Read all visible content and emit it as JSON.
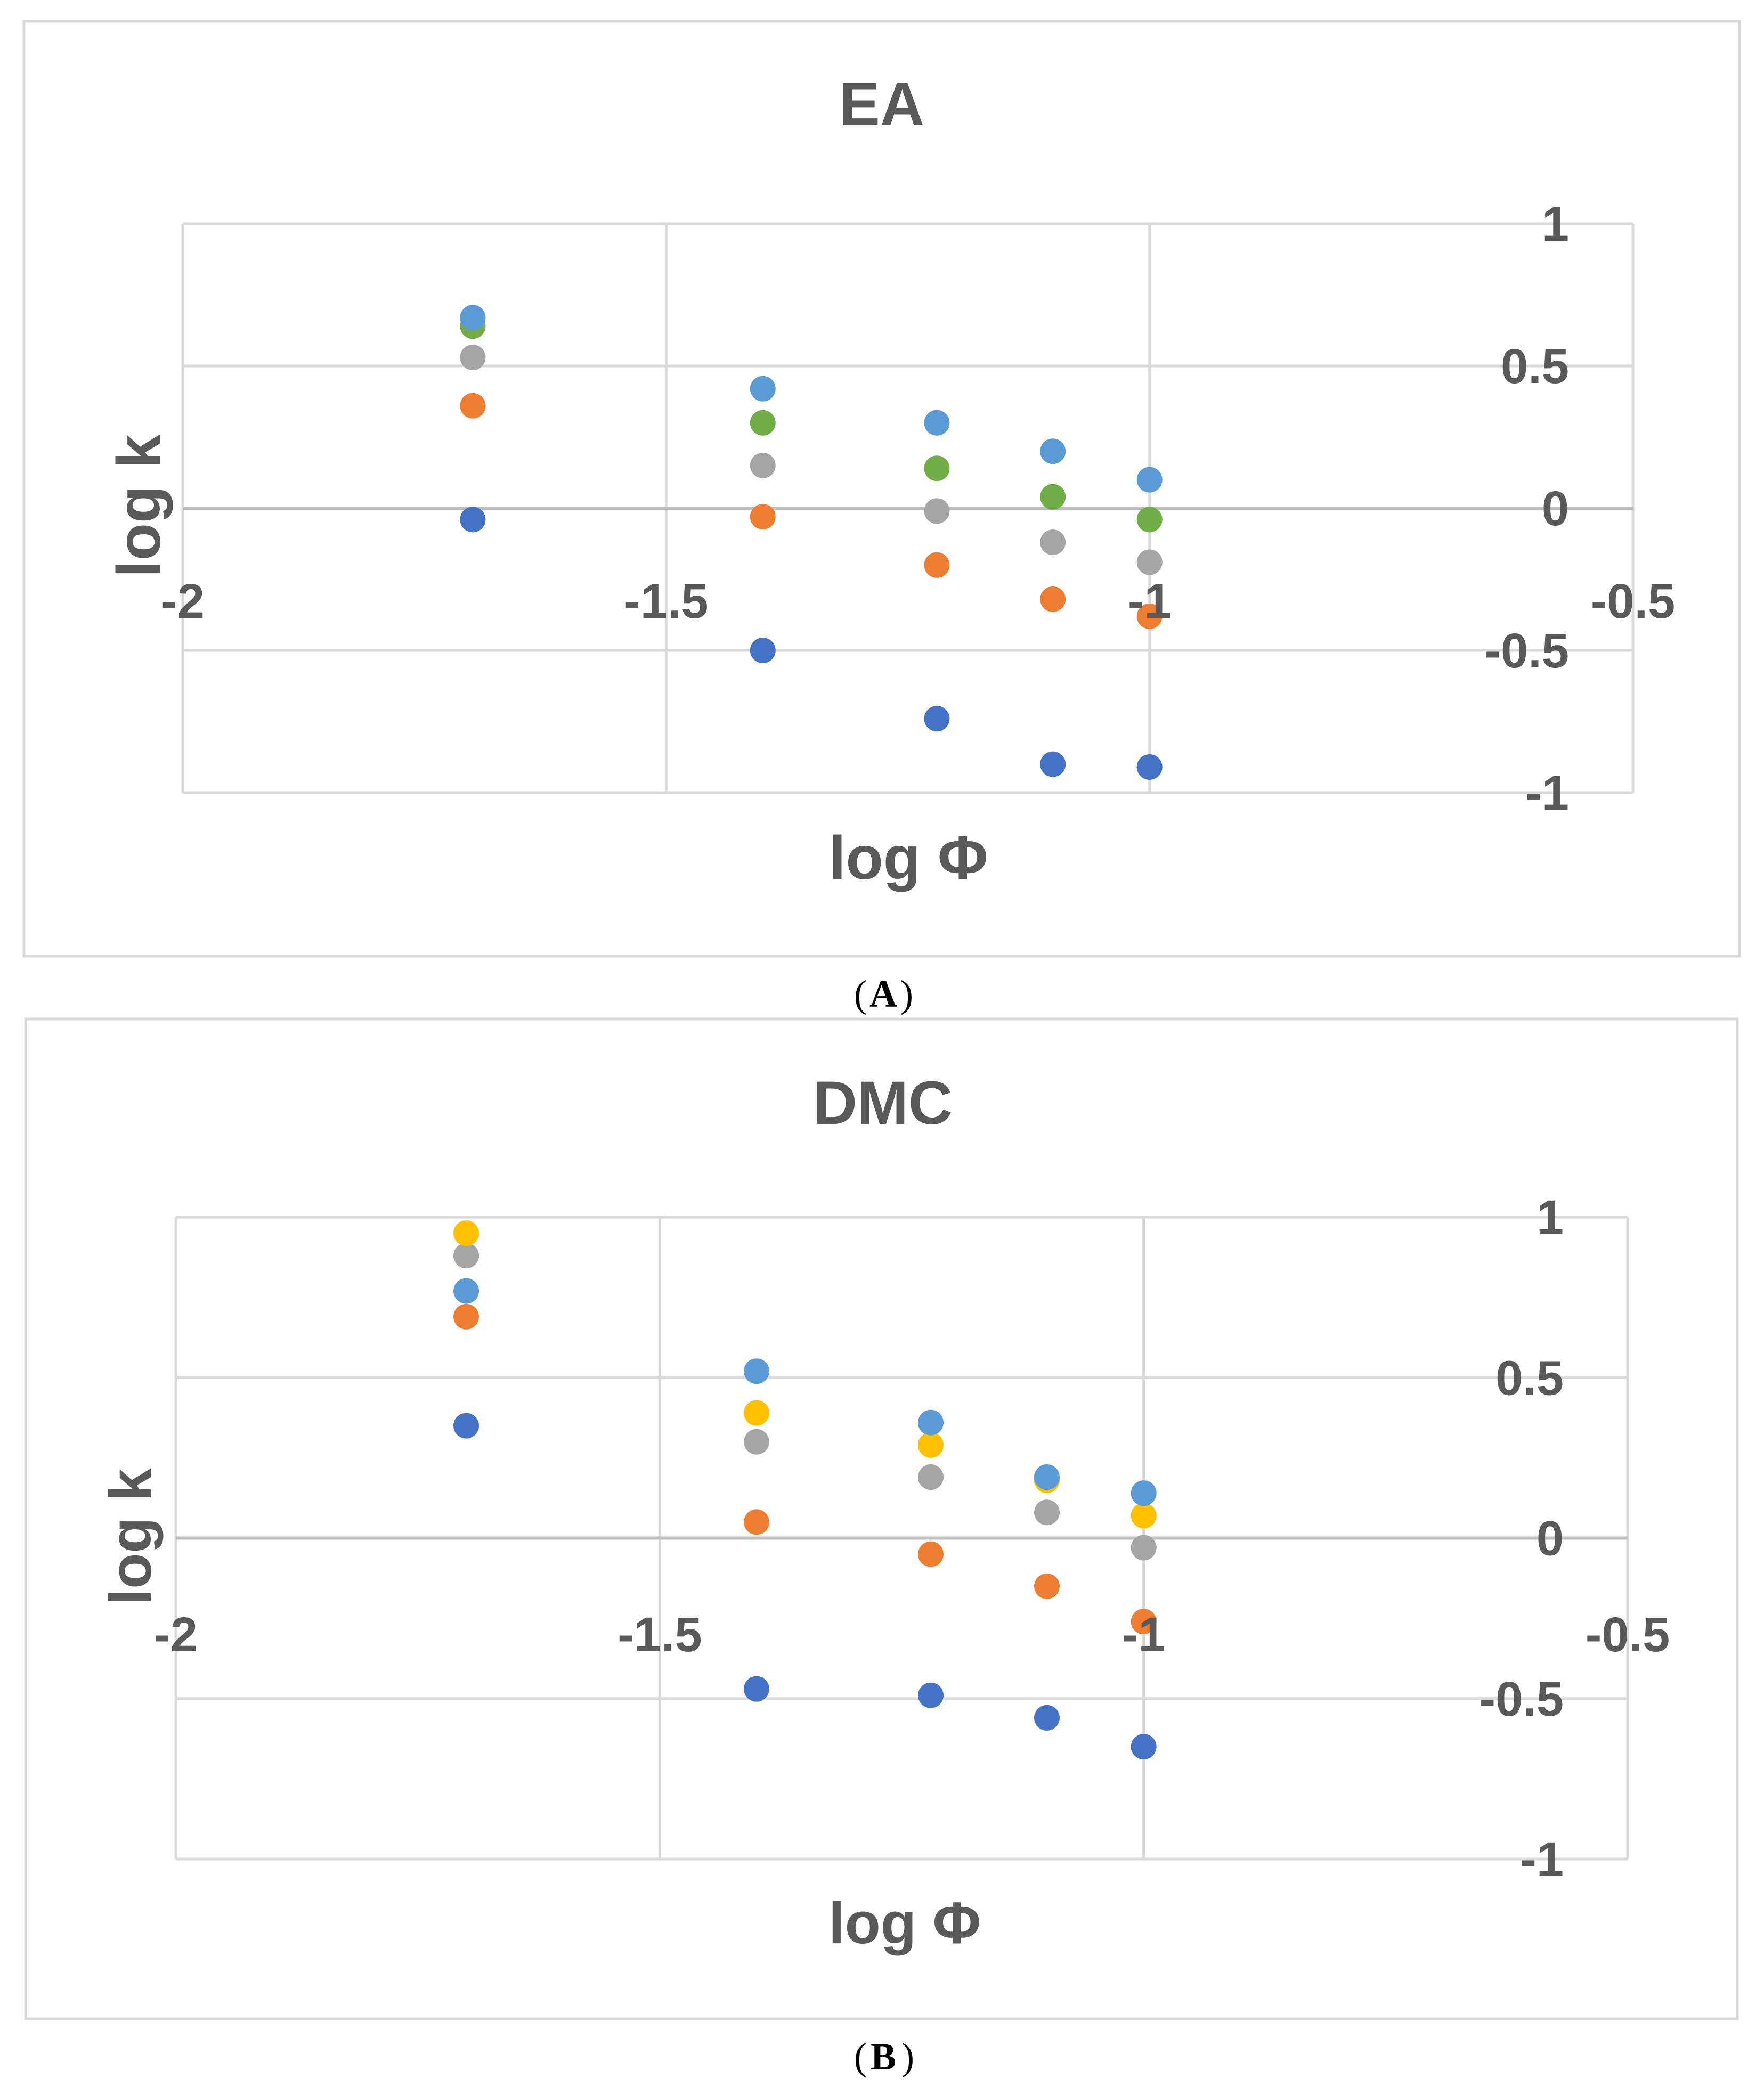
{
  "chart_data": [
    {
      "type": "scatter",
      "title": "EA",
      "xlabel": "log Φ",
      "ylabel": "log k",
      "xlim": [
        -2,
        -0.5
      ],
      "ylim": [
        -1,
        1
      ],
      "x_ticks": [
        "-2",
        "-1.5",
        "-1",
        "-0.5"
      ],
      "y_ticks": [
        "1",
        "0.5",
        "0",
        "-0.5",
        "-1"
      ],
      "grid": true,
      "legend": "none",
      "caption_letter": "A",
      "series": [
        {
          "name": "series-1",
          "color": "#4472c4",
          "x": [
            -1.7,
            -1.4,
            -1.22,
            -1.1,
            -1.0
          ],
          "y": [
            -0.04,
            -0.5,
            -0.74,
            -0.9,
            -0.91
          ]
        },
        {
          "name": "series-2",
          "color": "#ed7d31",
          "x": [
            -1.7,
            -1.4,
            -1.22,
            -1.1,
            -1.0
          ],
          "y": [
            0.36,
            -0.03,
            -0.2,
            -0.32,
            -0.38
          ]
        },
        {
          "name": "series-3",
          "color": "#a5a5a5",
          "x": [
            -1.7,
            -1.4,
            -1.22,
            -1.1,
            -1.0
          ],
          "y": [
            0.53,
            0.15,
            -0.01,
            -0.12,
            -0.19
          ]
        },
        {
          "name": "series-4",
          "color": "#70ad47",
          "x": [
            -1.7,
            -1.4,
            -1.22,
            -1.1,
            -1.0
          ],
          "y": [
            0.64,
            0.3,
            0.14,
            0.04,
            -0.04
          ]
        },
        {
          "name": "series-5",
          "color": "#5b9bd5",
          "x": [
            -1.7,
            -1.4,
            -1.22,
            -1.1,
            -1.0
          ],
          "y": [
            0.67,
            0.42,
            0.3,
            0.2,
            0.1
          ]
        }
      ]
    },
    {
      "type": "scatter",
      "title": "DMC",
      "xlabel": "log Φ",
      "ylabel": "log k",
      "xlim": [
        -2,
        -0.5
      ],
      "ylim": [
        -1,
        1
      ],
      "x_ticks": [
        "-2",
        "-1.5",
        "-1",
        "-0.5"
      ],
      "y_ticks": [
        "1",
        "0.5",
        "0",
        "-0.5",
        "-1"
      ],
      "grid": true,
      "legend": "none",
      "caption_letter": "B",
      "series": [
        {
          "name": "series-1",
          "color": "#4472c4",
          "x": [
            -1.7,
            -1.4,
            -1.22,
            -1.1,
            -1.0
          ],
          "y": [
            0.35,
            -0.47,
            -0.49,
            -0.56,
            -0.65
          ]
        },
        {
          "name": "series-2",
          "color": "#ed7d31",
          "x": [
            -1.7,
            -1.4,
            -1.22,
            -1.1,
            -1.0
          ],
          "y": [
            0.69,
            0.05,
            -0.05,
            -0.15,
            -0.26
          ]
        },
        {
          "name": "series-3",
          "color": "#a5a5a5",
          "x": [
            -1.7,
            -1.4,
            -1.22,
            -1.1,
            -1.0
          ],
          "y": [
            0.88,
            0.3,
            0.19,
            0.08,
            -0.03
          ]
        },
        {
          "name": "series-4",
          "color": "#ffc000",
          "x": [
            -1.7,
            -1.4,
            -1.22,
            -1.1,
            -1.0
          ],
          "y": [
            0.95,
            0.39,
            0.29,
            0.18,
            0.07
          ]
        },
        {
          "name": "series-5",
          "color": "#5b9bd5",
          "x": [
            -1.7,
            -1.4,
            -1.22,
            -1.1,
            -1.0
          ],
          "y": [
            0.77,
            0.52,
            0.36,
            0.19,
            0.14
          ]
        }
      ]
    }
  ]
}
